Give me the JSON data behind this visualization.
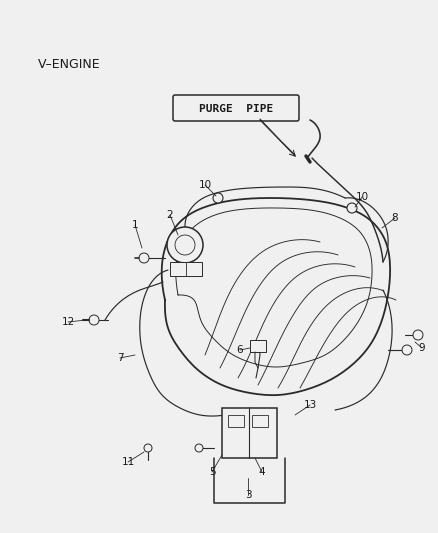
{
  "title": "V–ENGINE",
  "purge_label": "PURGE  PIPE",
  "bg_color": "#f0f0f0",
  "line_color": "#2a2a2a",
  "label_color": "#1a1a1a",
  "label_fontsize": 7.5,
  "title_fontsize": 9,
  "figsize": [
    4.38,
    5.33
  ],
  "dpi": 100
}
